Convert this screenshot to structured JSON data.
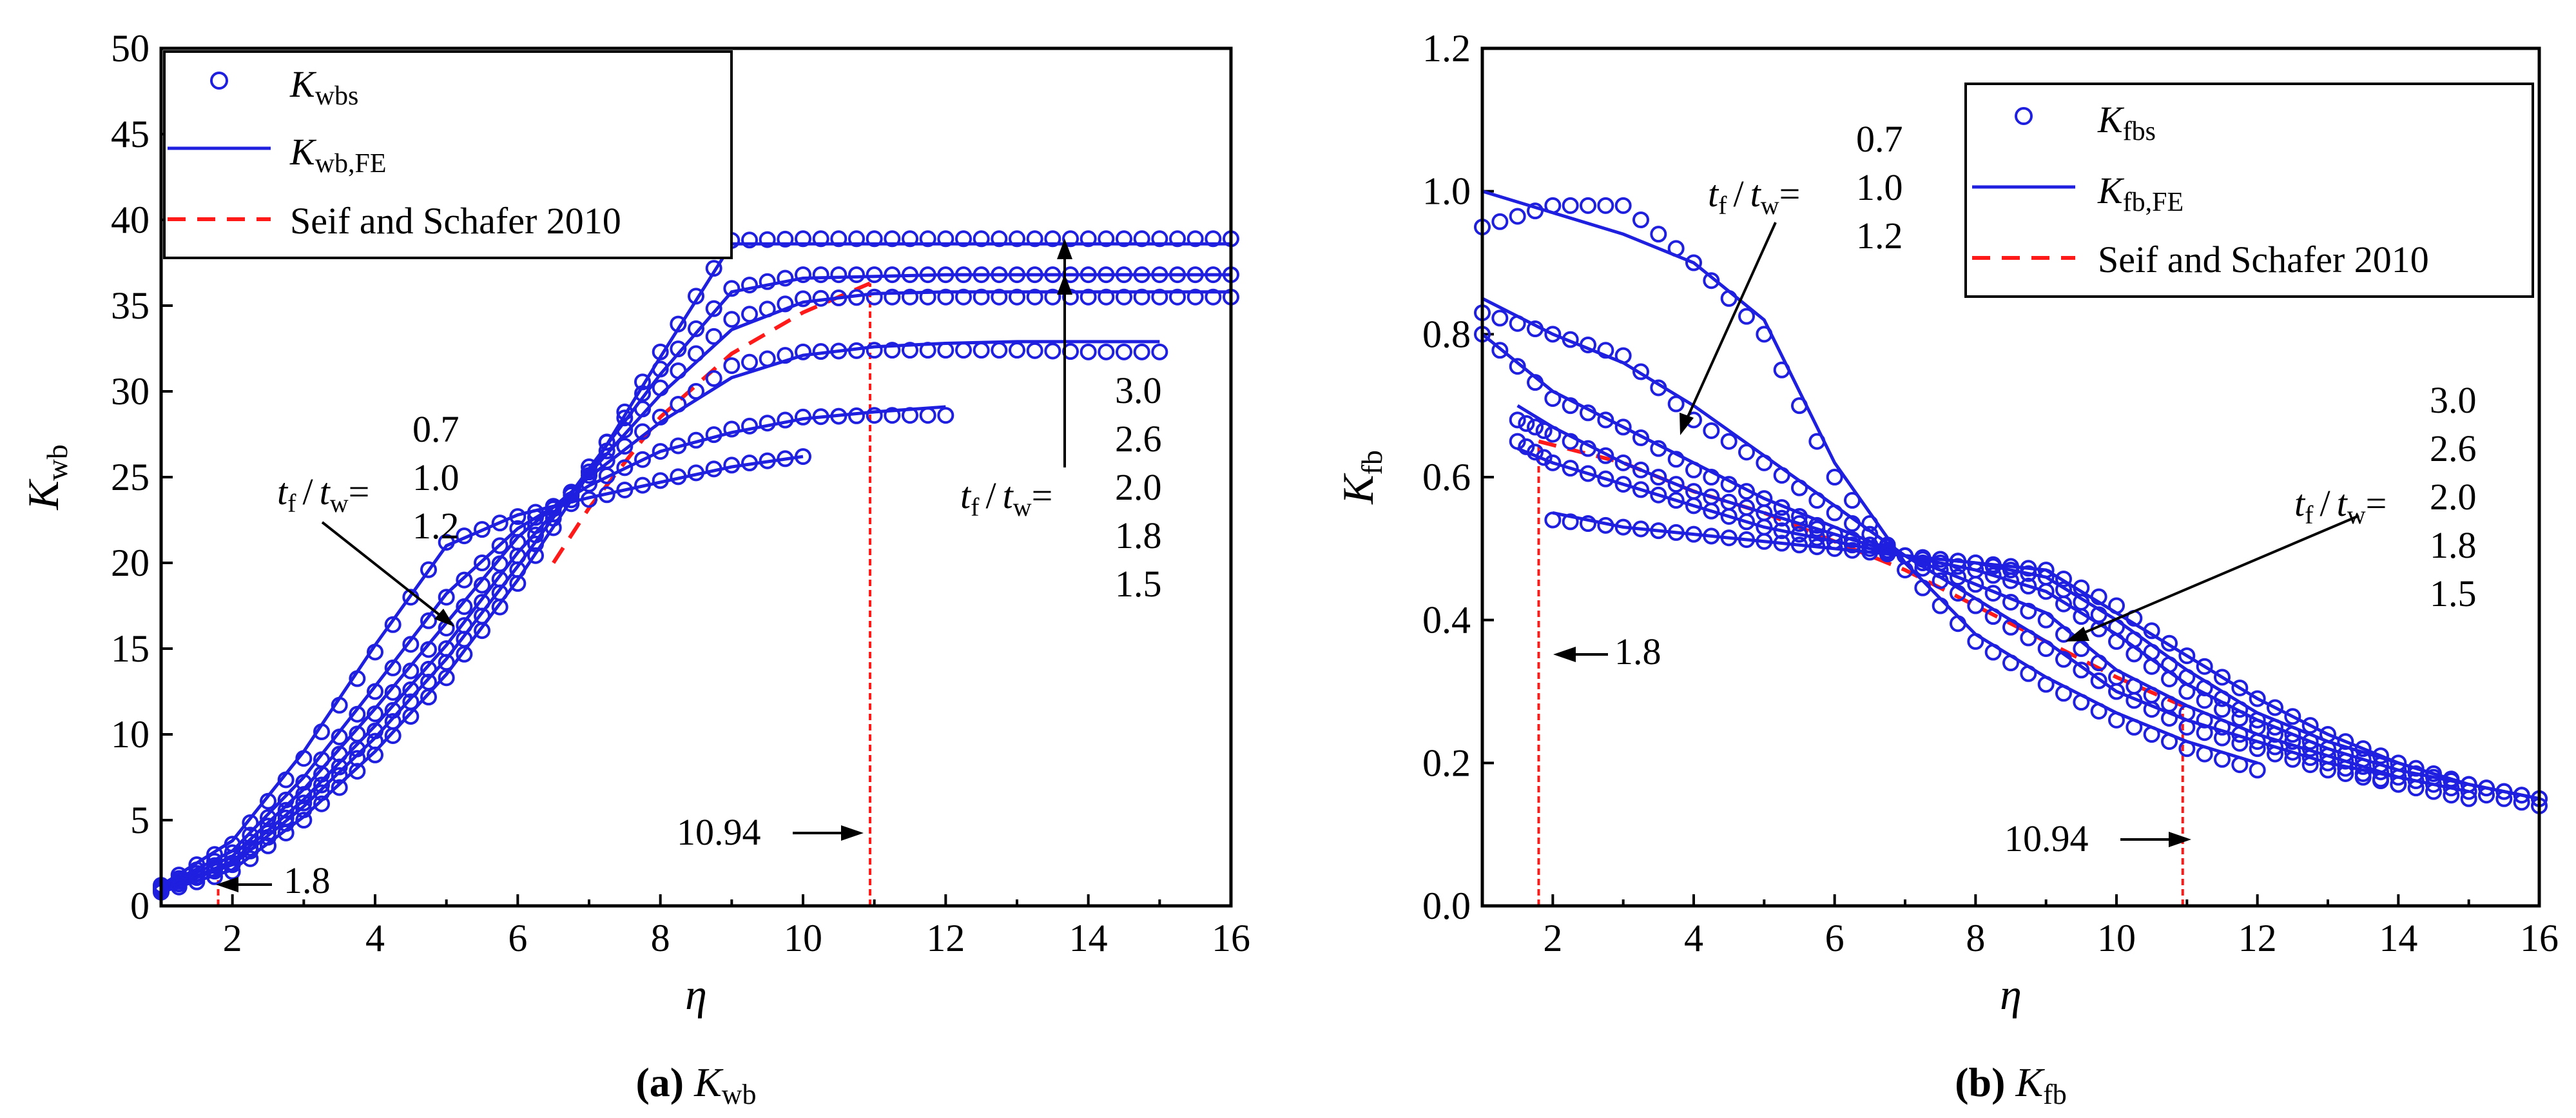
{
  "colors": {
    "series": "#1f1fe0",
    "reference": "#ff1a1a",
    "axis": "#000000"
  },
  "chart_data": [
    {
      "type": "line",
      "panel_label": "(a)",
      "caption_symbol": "K",
      "caption_sub": "wb",
      "xlabel": "η",
      "ylabel": "K",
      "ylabel_sub": "wb",
      "xlim": [
        1,
        16
      ],
      "ylim": [
        0,
        50
      ],
      "xticks": [
        "2",
        "4",
        "6",
        "8",
        "10",
        "12",
        "14",
        "16"
      ],
      "yticks": [
        "0",
        "5",
        "10",
        "15",
        "20",
        "25",
        "30",
        "35",
        "40",
        "45",
        "50"
      ],
      "legend": {
        "position": "top-left",
        "markers_sym": "K",
        "markers_sub": "wbs",
        "lines_sym": "K",
        "lines_sub": "wb,FE",
        "reference": "Seif and Schafer 2010"
      },
      "reference_marks": [
        {
          "x": 1.8,
          "label": "1.8"
        },
        {
          "x": 10.94,
          "label": "10.94"
        }
      ],
      "group_low": {
        "ratio_label_t": "t",
        "ratio_label_f": "f",
        "ratio_label_w": "w",
        "slash": "/",
        "values": [
          "0.7",
          "1.0",
          "1.2"
        ]
      },
      "group_high": {
        "ratio_label_t": "t",
        "ratio_label_f": "f",
        "ratio_label_w": "w",
        "slash": "/",
        "values": [
          "3.0",
          "2.6",
          "2.0",
          "1.8",
          "1.5"
        ]
      },
      "series": [
        {
          "name": "tf/tw=0.7",
          "x": [
            1,
            2,
            3,
            4,
            5,
            6,
            7,
            8,
            9,
            10
          ],
          "fe": [
            1.2,
            3.8,
            9,
            15.2,
            21,
            22.8,
            23.8,
            24.7,
            25.6,
            26.2
          ],
          "markers": [
            1.2,
            3.6,
            8.6,
            14.8,
            21.2,
            22.7,
            23.7,
            24.8,
            25.7,
            26.2
          ]
        },
        {
          "name": "tf/tw=1.0",
          "x": [
            1,
            2,
            3,
            4,
            5,
            6,
            7,
            8,
            9,
            10,
            11,
            12
          ],
          "fe": [
            1.1,
            3.2,
            7.5,
            12.8,
            18.2,
            22,
            24.5,
            26.5,
            27.6,
            28.4,
            28.8,
            29.1
          ],
          "markers": [
            1.1,
            3.1,
            7.2,
            12.5,
            18,
            22,
            24.6,
            26.5,
            27.8,
            28.5,
            28.6,
            28.6
          ]
        },
        {
          "name": "tf/tw=1.2",
          "x": [
            1,
            2,
            3,
            4,
            5,
            6,
            7,
            8,
            9,
            10,
            11,
            12,
            13,
            14,
            15
          ],
          "fe": [
            1.0,
            2.9,
            6.8,
            11.5,
            16.5,
            21.5,
            25,
            28.2,
            30.8,
            32.1,
            32.6,
            32.8,
            32.9,
            32.9,
            32.9
          ],
          "markers": [
            1.0,
            2.8,
            6.5,
            11.2,
            16.2,
            21.2,
            25.1,
            28.5,
            31.5,
            32.3,
            32.4,
            32.4,
            32.4,
            32.3,
            32.3
          ]
        },
        {
          "name": "tf/tw=1.5",
          "x": [
            1,
            2,
            3,
            4,
            5,
            6,
            7,
            8,
            9,
            10,
            11,
            12,
            13,
            14,
            15,
            16
          ],
          "fe": [
            0.9,
            2.6,
            6.2,
            10.5,
            15.2,
            20.6,
            25.2,
            29.8,
            33.6,
            35.2,
            35.7,
            35.8,
            35.8,
            35.8,
            35.8,
            35.8
          ],
          "markers": [
            0.9,
            2.5,
            6,
            10.2,
            15,
            20.4,
            25.3,
            30.2,
            34.2,
            35.4,
            35.5,
            35.5,
            35.5,
            35.5,
            35.5,
            35.5
          ]
        },
        {
          "name": "tf/tw=2.0",
          "x": [
            1,
            2,
            3,
            4,
            5,
            6,
            7,
            8,
            9,
            10,
            11,
            12,
            13,
            14,
            15,
            16
          ],
          "fe": [
            0.9,
            2.4,
            5.8,
            9.8,
            14.4,
            19.8,
            25.5,
            31,
            35.8,
            36.6,
            36.7,
            36.8,
            36.8,
            36.8,
            36.8,
            36.8
          ],
          "markers": [
            0.9,
            2.4,
            5.6,
            9.6,
            14.2,
            19.6,
            25.6,
            31.3,
            36,
            36.8,
            36.8,
            36.8,
            36.8,
            36.8,
            36.8,
            36.8
          ]
        },
        {
          "name": "tf/tw=3.0",
          "x": [
            1,
            2,
            3,
            4,
            5,
            6,
            7,
            8,
            9,
            10,
            11,
            12,
            13,
            14,
            15,
            16
          ],
          "fe": [
            0.8,
            2.1,
            5.2,
            9.0,
            13.5,
            19,
            25.2,
            32,
            38.6,
            38.6,
            38.6,
            38.6,
            38.6,
            38.6,
            38.6,
            38.6
          ],
          "markers": [
            0.8,
            2.0,
            5.0,
            8.8,
            13.3,
            18.8,
            25.3,
            32.3,
            38.8,
            38.9,
            38.9,
            38.9,
            38.9,
            38.9,
            38.9,
            38.9
          ]
        }
      ],
      "reference_curve": {
        "x": [
          6.5,
          7,
          8,
          9,
          10,
          10.94
        ],
        "y": [
          20,
          23.2,
          28.5,
          32.2,
          34.6,
          36.3
        ]
      }
    },
    {
      "type": "line",
      "panel_label": "(b)",
      "caption_symbol": "K",
      "caption_sub": "fb",
      "xlabel": "η",
      "ylabel": "K",
      "ylabel_sub": "fb",
      "xlim": [
        1,
        16
      ],
      "ylim": [
        0,
        1.2
      ],
      "xticks": [
        "2",
        "4",
        "6",
        "8",
        "10",
        "12",
        "14",
        "16"
      ],
      "yticks": [
        "0.0",
        "0.2",
        "0.4",
        "0.6",
        "0.8",
        "1.0",
        "1.2"
      ],
      "legend": {
        "position": "top-right",
        "markers_sym": "K",
        "markers_sub": "fbs",
        "lines_sym": "K",
        "lines_sub": "fb,FE",
        "reference": "Seif and Schafer 2010"
      },
      "reference_marks": [
        {
          "x": 1.8,
          "label": "1.8"
        },
        {
          "x": 10.94,
          "label": "10.94"
        }
      ],
      "group_low": {
        "ratio_label_t": "t",
        "ratio_label_f": "f",
        "ratio_label_w": "w",
        "slash": "/",
        "values": [
          "0.7",
          "1.0",
          "1.2"
        ]
      },
      "group_high": {
        "ratio_label_t": "t",
        "ratio_label_f": "f",
        "ratio_label_w": "w",
        "slash": "/",
        "values": [
          "3.0",
          "2.6",
          "2.0",
          "1.8",
          "1.5"
        ]
      },
      "series": [
        {
          "name": "tf/tw=0.7",
          "x": [
            1,
            2,
            3,
            4,
            5,
            6,
            7,
            8,
            9,
            10,
            11,
            12
          ],
          "fe": [
            1.0,
            0.97,
            0.94,
            0.9,
            0.82,
            0.62,
            0.48,
            0.38,
            0.32,
            0.27,
            0.23,
            0.2
          ],
          "markers": [
            0.95,
            0.98,
            0.98,
            0.9,
            0.8,
            0.6,
            0.47,
            0.37,
            0.31,
            0.26,
            0.22,
            0.19
          ]
        },
        {
          "name": "tf/tw=1.0",
          "x": [
            1,
            2,
            3,
            4,
            5,
            6,
            7,
            8,
            9,
            10,
            11,
            12,
            13,
            14
          ],
          "fe": [
            0.85,
            0.8,
            0.76,
            0.7,
            0.63,
            0.56,
            0.49,
            0.43,
            0.37,
            0.3,
            0.26,
            0.23,
            0.2,
            0.18
          ],
          "markers": [
            0.83,
            0.8,
            0.77,
            0.68,
            0.62,
            0.55,
            0.49,
            0.42,
            0.36,
            0.3,
            0.25,
            0.22,
            0.19,
            0.17
          ]
        },
        {
          "name": "tf/tw=1.2",
          "x": [
            1,
            2,
            3,
            4,
            5,
            6,
            7,
            8,
            9,
            10,
            11,
            12,
            13,
            14,
            15
          ],
          "fe": [
            0.8,
            0.72,
            0.67,
            0.62,
            0.57,
            0.53,
            0.49,
            0.45,
            0.41,
            0.33,
            0.28,
            0.24,
            0.21,
            0.18,
            0.16
          ],
          "markers": [
            0.8,
            0.71,
            0.67,
            0.61,
            0.57,
            0.52,
            0.49,
            0.45,
            0.4,
            0.32,
            0.27,
            0.23,
            0.2,
            0.17,
            0.15
          ]
        },
        {
          "name": "tf/tw=1.5",
          "x": [
            1.5,
            2,
            3,
            4,
            5,
            6,
            7,
            8,
            9,
            10,
            11,
            12,
            13,
            14,
            15,
            16
          ],
          "fe": [
            0.7,
            0.67,
            0.62,
            0.58,
            0.55,
            0.52,
            0.49,
            0.47,
            0.44,
            0.38,
            0.31,
            0.26,
            0.22,
            0.19,
            0.17,
            0.15
          ],
          "markers": [
            0.68,
            0.66,
            0.62,
            0.58,
            0.55,
            0.52,
            0.49,
            0.47,
            0.44,
            0.37,
            0.3,
            0.25,
            0.21,
            0.18,
            0.16,
            0.14
          ]
        },
        {
          "name": "tf/tw=2.0",
          "x": [
            1.5,
            2,
            3,
            4,
            5,
            6,
            7,
            8,
            9,
            10,
            11,
            12,
            13,
            14,
            15,
            16
          ],
          "fe": [
            0.64,
            0.62,
            0.59,
            0.56,
            0.53,
            0.51,
            0.49,
            0.48,
            0.46,
            0.4,
            0.33,
            0.27,
            0.23,
            0.2,
            0.17,
            0.15
          ],
          "markers": [
            0.65,
            0.62,
            0.59,
            0.56,
            0.53,
            0.51,
            0.49,
            0.48,
            0.46,
            0.39,
            0.32,
            0.26,
            0.22,
            0.19,
            0.17,
            0.15
          ]
        },
        {
          "name": "tf/tw=3.0",
          "x": [
            2,
            3,
            4,
            5,
            6,
            7,
            8,
            9,
            10,
            11,
            12,
            13,
            14,
            15,
            16
          ],
          "fe": [
            0.55,
            0.53,
            0.52,
            0.51,
            0.5,
            0.49,
            0.48,
            0.47,
            0.41,
            0.35,
            0.29,
            0.24,
            0.2,
            0.17,
            0.15
          ],
          "markers": [
            0.54,
            0.53,
            0.52,
            0.51,
            0.5,
            0.49,
            0.48,
            0.47,
            0.42,
            0.35,
            0.29,
            0.24,
            0.2,
            0.17,
            0.15
          ]
        }
      ],
      "reference_curve": {
        "x": [
          1.8,
          3,
          4,
          5,
          6,
          7,
          8,
          9,
          10,
          10.94
        ],
        "y": [
          0.65,
          0.62,
          0.58,
          0.55,
          0.51,
          0.47,
          0.42,
          0.37,
          0.32,
          0.28
        ]
      }
    }
  ]
}
